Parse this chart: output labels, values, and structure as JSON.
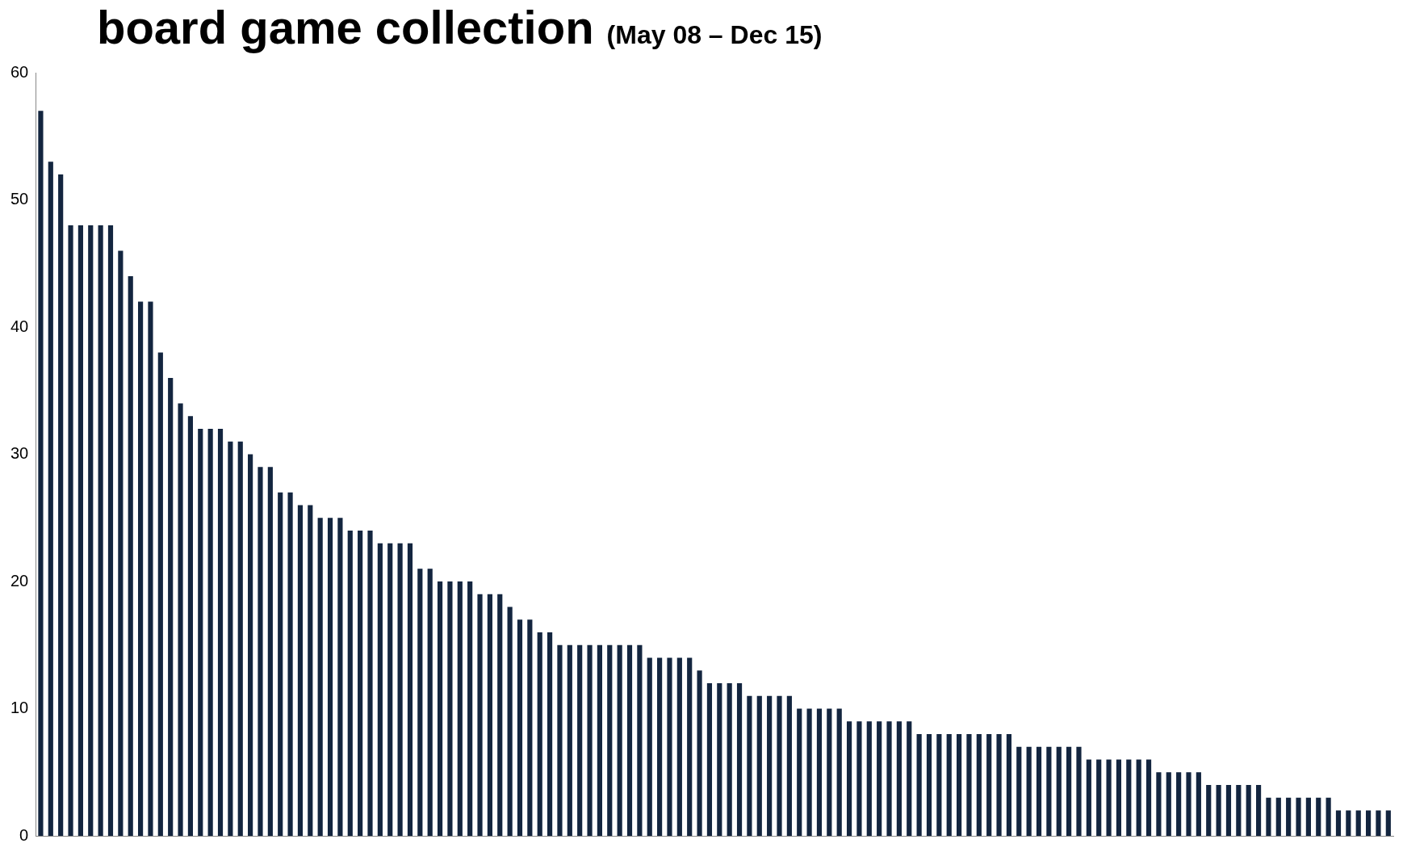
{
  "chart_data": {
    "type": "bar",
    "title": "board game collection",
    "subtitle": "(May 08 – Dec 15)",
    "categories": [
      null,
      null,
      null,
      null,
      null,
      null,
      null,
      null,
      null,
      null,
      null,
      null,
      null,
      null,
      null,
      null,
      null,
      null,
      null,
      null,
      null,
      null,
      null,
      null,
      null,
      null,
      null,
      null,
      null,
      null,
      null,
      null,
      null,
      null,
      null,
      null,
      null,
      null,
      null,
      null,
      null,
      null,
      null,
      null,
      null,
      null,
      null,
      null,
      null,
      null,
      null,
      null,
      null,
      null,
      null,
      null,
      null,
      null,
      null,
      null,
      null,
      null,
      null,
      null,
      null,
      null,
      null,
      null,
      null,
      null,
      null,
      null,
      null,
      null,
      null,
      null,
      null,
      null,
      null,
      null,
      null,
      null,
      null,
      null,
      null,
      null,
      null,
      null,
      null,
      null,
      null,
      null,
      null,
      null,
      null,
      null,
      null,
      null,
      null,
      null,
      null,
      null,
      null,
      null,
      null,
      null,
      null,
      null,
      null,
      null,
      null,
      null,
      null,
      null,
      null,
      null,
      null,
      null,
      null,
      null,
      null,
      null,
      null,
      null,
      null,
      null,
      null,
      null,
      null,
      null,
      null,
      null,
      null,
      null,
      null,
      null
    ],
    "values": [
      57,
      53,
      52,
      48,
      48,
      48,
      48,
      48,
      46,
      44,
      42,
      42,
      38,
      36,
      34,
      33,
      32,
      32,
      32,
      31,
      31,
      30,
      29,
      29,
      27,
      27,
      26,
      26,
      25,
      25,
      25,
      24,
      24,
      24,
      23,
      23,
      23,
      23,
      21,
      21,
      20,
      20,
      20,
      20,
      19,
      19,
      19,
      18,
      17,
      17,
      16,
      16,
      15,
      15,
      15,
      15,
      15,
      15,
      15,
      15,
      15,
      14,
      14,
      14,
      14,
      14,
      13,
      12,
      12,
      12,
      12,
      11,
      11,
      11,
      11,
      11,
      10,
      10,
      10,
      10,
      10,
      9,
      9,
      9,
      9,
      9,
      9,
      9,
      8,
      8,
      8,
      8,
      8,
      8,
      8,
      8,
      8,
      8,
      7,
      7,
      7,
      7,
      7,
      7,
      7,
      6,
      6,
      6,
      6,
      6,
      6,
      6,
      5,
      5,
      5,
      5,
      5,
      4,
      4,
      4,
      4,
      4,
      4,
      3,
      3,
      3,
      3,
      3,
      3,
      3,
      2,
      2,
      2,
      2,
      2,
      2
    ],
    "color": "#13253f",
    "ylim": [
      0,
      60
    ],
    "yticks": [
      0,
      10,
      20,
      30,
      40,
      50,
      60
    ],
    "tick_labels": "y",
    "grid": false
  }
}
